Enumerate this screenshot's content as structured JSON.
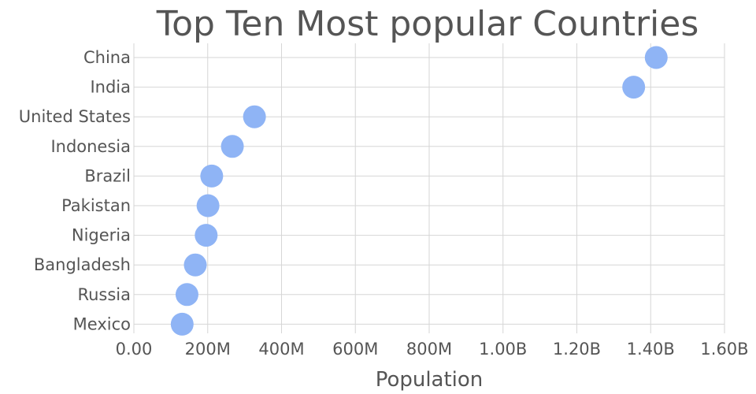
{
  "chart_data": {
    "type": "scatter",
    "title": "Top Ten Most popular Countries",
    "xlabel": "Population",
    "ylabel": "",
    "xlim": [
      0,
      1600000000
    ],
    "x_ticks": [
      {
        "value": 0,
        "label": "0.00"
      },
      {
        "value": 200000000,
        "label": "200M"
      },
      {
        "value": 400000000,
        "label": "400M"
      },
      {
        "value": 600000000,
        "label": "600M"
      },
      {
        "value": 800000000,
        "label": "800M"
      },
      {
        "value": 1000000000,
        "label": "1.00B"
      },
      {
        "value": 1200000000,
        "label": "1.20B"
      },
      {
        "value": 1400000000,
        "label": "1.40B"
      },
      {
        "value": 1600000000,
        "label": "1.60B"
      }
    ],
    "categories": [
      "China",
      "India",
      "United States",
      "Indonesia",
      "Brazil",
      "Pakistan",
      "Nigeria",
      "Bangladesh",
      "Russia",
      "Mexico"
    ],
    "values": [
      1415000000,
      1354000000,
      326700000,
      266800000,
      210900000,
      200800000,
      195900000,
      166400000,
      143900000,
      130800000
    ],
    "marker_color": "#8fb4f5",
    "grid": true,
    "legend": "none"
  }
}
